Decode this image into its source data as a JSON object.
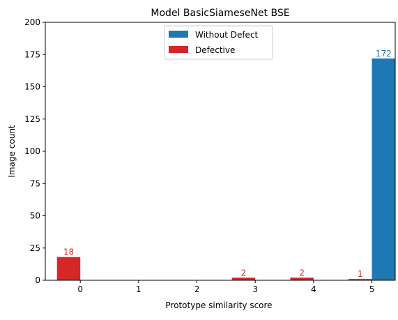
{
  "chart_data": {
    "type": "bar",
    "title": "Model BasicSiameseNet BSE",
    "xlabel": "Prototype similarity score",
    "ylabel": "Image count",
    "categories": [
      "0",
      "1",
      "2",
      "3",
      "4",
      "5"
    ],
    "ylim": [
      0,
      200
    ],
    "yticks": [
      0,
      25,
      50,
      75,
      100,
      125,
      150,
      175,
      200
    ],
    "grid": false,
    "legend_position": "top-center",
    "series": [
      {
        "name": "Without Defect",
        "color": "#1f77b4",
        "values": [
          0,
          0,
          0,
          0,
          0,
          172
        ],
        "labels": [
          "",
          "",
          "",
          "",
          "",
          "172"
        ]
      },
      {
        "name": "Defective",
        "color": "#d62728",
        "values": [
          18,
          0,
          0,
          2,
          2,
          1
        ],
        "labels": [
          "18",
          "",
          "",
          "2",
          "2",
          "1"
        ]
      }
    ]
  }
}
